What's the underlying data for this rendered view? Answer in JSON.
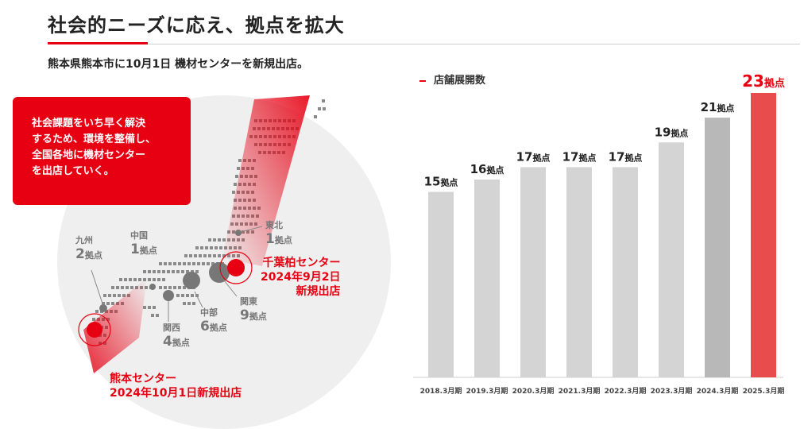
{
  "header": {
    "title": "社会的ニーズに応え、拠点を拡大",
    "subtitle": "熊本県熊本市に10月1日 機材センターを新規出店。"
  },
  "info_box": {
    "lines": [
      "社会課題をいち早く解決",
      "するため、環境を整備し、",
      "全国各地に機材センター",
      "を出店していく。"
    ]
  },
  "regions": [
    {
      "name": "九州",
      "count": "2",
      "unit": "拠点"
    },
    {
      "name": "中国",
      "count": "1",
      "unit": "拠点"
    },
    {
      "name": "東北",
      "count": "1",
      "unit": "拠点"
    },
    {
      "name": "中部",
      "count": "6",
      "unit": "拠点"
    },
    {
      "name": "関西",
      "count": "4",
      "unit": "拠点"
    },
    {
      "name": "関東",
      "count": "9",
      "unit": "拠点"
    }
  ],
  "callouts": {
    "chiba": [
      "千葉柏センター",
      "2024年9月2日",
      "新規出店"
    ],
    "kumamoto": [
      "熊本センター",
      "2024年10月1日新規出店"
    ]
  },
  "colors": {
    "accent": "#e60012",
    "bar": "#d4d4d4",
    "bar_dark": "#b8b8b8",
    "bar_highlight": "#e84c4c"
  },
  "chart_data": {
    "type": "bar",
    "legend": "店舗展開数",
    "categories": [
      "2018.3月期",
      "2019.3月期",
      "2020.3月期",
      "2021.3月期",
      "2022.3月期",
      "2023.3月期",
      "2024.3月期",
      "2025.3月期"
    ],
    "values": [
      15,
      16,
      17,
      17,
      17,
      19,
      21,
      23
    ],
    "unit": "拠点",
    "highlight_index": 7,
    "ylim": [
      0,
      23
    ]
  }
}
